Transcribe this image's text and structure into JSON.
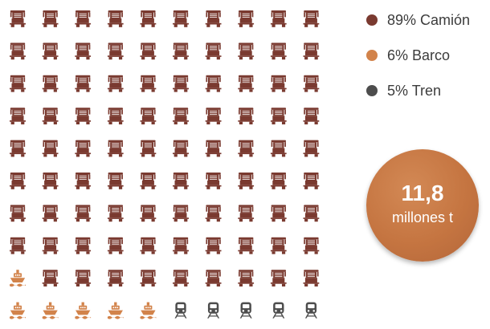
{
  "chart_data": {
    "type": "pictograph",
    "units_total": 100,
    "series": [
      {
        "name": "Camión",
        "value": 89,
        "color": "#7a3a30",
        "icon": "truck-icon"
      },
      {
        "name": "Barco",
        "value": 6,
        "color": "#d2834b",
        "icon": "ship-icon"
      },
      {
        "name": "Tren",
        "value": 5,
        "color": "#4d4d4d",
        "icon": "train-icon"
      }
    ],
    "total": {
      "value": "11,8",
      "unit": "millones t"
    }
  }
}
